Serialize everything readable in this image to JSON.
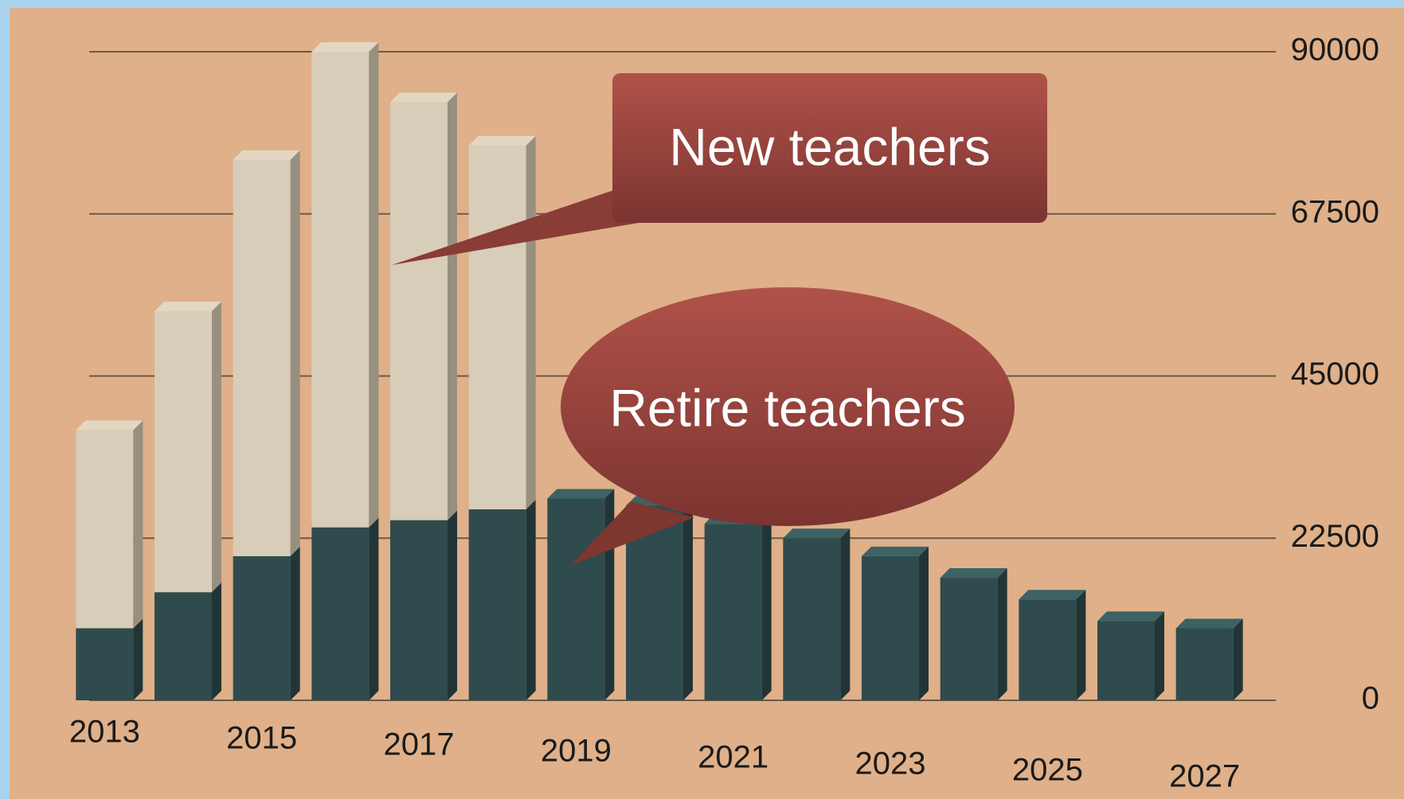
{
  "chart_data": {
    "type": "bar",
    "stacked": true,
    "categories": [
      "2013",
      null,
      "2015",
      null,
      "2017",
      null,
      "2019",
      null,
      "2021",
      null,
      "2023",
      null,
      "2025",
      null,
      "2027"
    ],
    "series": [
      {
        "name": "Retire teachers",
        "color": "#2f4b4d",
        "values": [
          10000,
          15000,
          20000,
          24000,
          25000,
          26500,
          28000,
          27000,
          24500,
          22500,
          20000,
          17000,
          14000,
          11000,
          10000
        ]
      },
      {
        "name": "New teachers",
        "color": "#d8cdb8",
        "values": [
          27500,
          39000,
          55000,
          66000,
          58000,
          50500,
          null,
          null,
          null,
          null,
          null,
          null,
          null,
          null,
          null
        ]
      }
    ],
    "ylim": [
      0,
      90000
    ],
    "yticks": [
      0,
      22500,
      45000,
      67500,
      90000
    ],
    "grid": true
  }
}
